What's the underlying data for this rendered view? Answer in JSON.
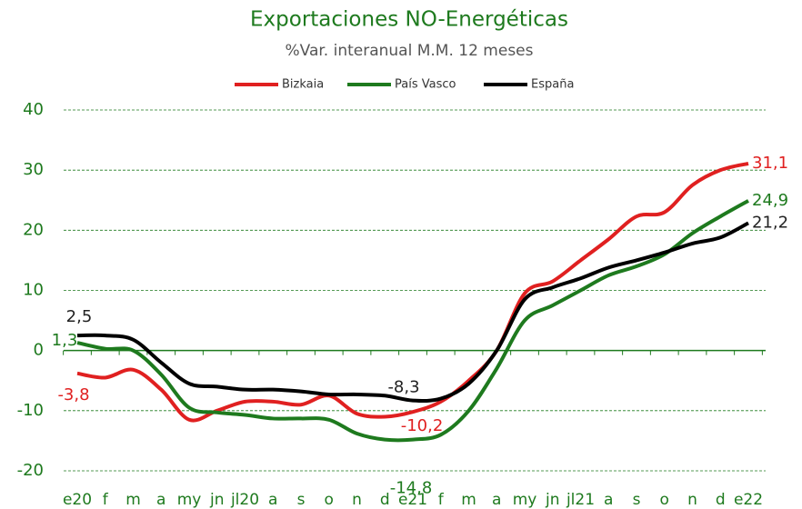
{
  "chart_data": {
    "type": "line",
    "title": "Exportaciones NO-Energéticas",
    "subtitle": "%Var. interanual M.M. 12 meses",
    "categories": [
      "e20",
      "f",
      "m",
      "a",
      "my",
      "jn",
      "jl20",
      "a",
      "s",
      "o",
      "n",
      "d",
      "e21",
      "f",
      "m",
      "a",
      "my",
      "jn",
      "jl21",
      "a",
      "s",
      "o",
      "n",
      "d",
      "e22"
    ],
    "series": [
      {
        "name": "Bizkaia",
        "color": "#e02020",
        "values": [
          -3.8,
          -4.5,
          -3.2,
          -6.5,
          -11.5,
          -10,
          -8.5,
          -8.5,
          -9,
          -7.5,
          -10.5,
          -11,
          -10.2,
          -8.5,
          -5,
          0,
          9.5,
          11.5,
          15,
          18.5,
          22.3,
          23,
          27.5,
          30,
          31.1
        ],
        "value_labels": [
          "-3,8",
          null,
          null,
          null,
          null,
          null,
          null,
          null,
          null,
          null,
          null,
          null,
          "-10,2",
          null,
          null,
          null,
          null,
          null,
          null,
          null,
          null,
          null,
          null,
          null,
          "31,1"
        ]
      },
      {
        "name": "País Vasco",
        "color": "#1e7a1e",
        "values": [
          1.3,
          0.3,
          0,
          -4,
          -9.5,
          -10.3,
          -10.7,
          -11.3,
          -11.3,
          -11.5,
          -13.8,
          -14.8,
          -14.8,
          -14,
          -10,
          -3,
          5,
          7.5,
          10,
          12.5,
          14,
          16,
          19.5,
          22.3,
          24.9
        ],
        "value_labels": [
          "1,3",
          null,
          null,
          null,
          null,
          null,
          null,
          null,
          null,
          null,
          null,
          null,
          "-14,8",
          null,
          null,
          null,
          null,
          null,
          null,
          null,
          null,
          null,
          null,
          null,
          "24,9"
        ]
      },
      {
        "name": "España",
        "color": "#000000",
        "values": [
          2.5,
          2.5,
          1.8,
          -2,
          -5.5,
          -6,
          -6.5,
          -6.5,
          -6.8,
          -7.3,
          -7.3,
          -7.5,
          -8.3,
          -8,
          -5.5,
          0,
          8.5,
          10.5,
          12,
          13.8,
          15,
          16.3,
          17.8,
          18.8,
          21.2
        ],
        "value_labels": [
          "2,5",
          null,
          null,
          null,
          null,
          null,
          null,
          null,
          null,
          null,
          null,
          null,
          "-8,3",
          null,
          null,
          null,
          null,
          null,
          null,
          null,
          null,
          null,
          null,
          null,
          "21,2"
        ]
      }
    ],
    "ylim": [
      -20,
      40
    ],
    "yticks": [
      -20,
      -10,
      0,
      10,
      20,
      30,
      40
    ],
    "grid": true,
    "legend": "top"
  }
}
